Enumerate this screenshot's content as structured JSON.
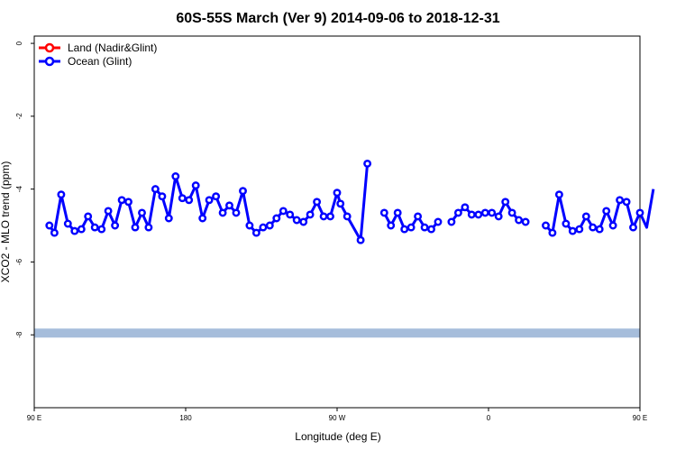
{
  "chart_data": {
    "type": "line",
    "title": "60S-55S March (Ver 9)   2014-09-06 to 2018-12-31",
    "xlabel": "Longitude (deg E)",
    "ylabel": "XCO2 - MLO trend (ppm)",
    "xlim": [
      90,
      450
    ],
    "ylim": [
      -10,
      0.2
    ],
    "x_ticks": [
      {
        "value": 90,
        "label": "90 E"
      },
      {
        "value": 180,
        "label": "180"
      },
      {
        "value": 270,
        "label": "90 W"
      },
      {
        "value": 360,
        "label": "0"
      },
      {
        "value": 450,
        "label": "90 E"
      },
      {
        "value": 540,
        "label": "180"
      }
    ],
    "y_ticks": [
      0,
      -2,
      -4,
      -6,
      -8
    ],
    "legend": [
      {
        "name": "Land (Nadir&Glint)",
        "color": "#ff0000"
      },
      {
        "name": "Ocean (Glint)",
        "color": "#0000ff"
      }
    ],
    "legend_position": "top-left",
    "band": {
      "y": -7.95,
      "color": "#a6bddb"
    },
    "series": [
      {
        "name": "Ocean (Glint)",
        "color": "#0000ff",
        "segments": [
          [
            [
              99,
              -5.0
            ],
            [
              102,
              -5.2
            ],
            [
              106,
              -4.15
            ],
            [
              110,
              -4.95
            ],
            [
              114,
              -5.15
            ],
            [
              118,
              -5.1
            ],
            [
              122,
              -4.75
            ],
            [
              126,
              -5.05
            ],
            [
              130,
              -5.1
            ],
            [
              134,
              -4.6
            ],
            [
              138,
              -5.0
            ],
            [
              142,
              -4.3
            ],
            [
              146,
              -4.35
            ],
            [
              150,
              -5.05
            ],
            [
              154,
              -4.65
            ],
            [
              158,
              -5.05
            ],
            [
              162,
              -4.0
            ],
            [
              166,
              -4.2
            ],
            [
              170,
              -4.8
            ],
            [
              174,
              -3.65
            ],
            [
              178,
              -4.25
            ],
            [
              182,
              -4.3
            ],
            [
              186,
              -3.9
            ],
            [
              190,
              -4.8
            ],
            [
              194,
              -4.3
            ],
            [
              198,
              -4.2
            ],
            [
              202,
              -4.65
            ],
            [
              206,
              -4.45
            ],
            [
              210,
              -4.65
            ],
            [
              214,
              -4.05
            ],
            [
              218,
              -5.0
            ],
            [
              222,
              -5.2
            ],
            [
              226,
              -5.05
            ],
            [
              230,
              -5.0
            ],
            [
              234,
              -4.8
            ],
            [
              238,
              -4.6
            ],
            [
              242,
              -4.7
            ],
            [
              246,
              -4.85
            ],
            [
              250,
              -4.9
            ],
            [
              254,
              -4.7
            ],
            [
              258,
              -4.35
            ],
            [
              262,
              -4.75
            ],
            [
              266,
              -4.75
            ],
            [
              270,
              -4.1
            ],
            [
              272,
              -4.4
            ],
            [
              276,
              -4.75
            ],
            [
              284,
              -5.4
            ],
            [
              288,
              -3.3
            ]
          ],
          [
            [
              298,
              -4.65
            ],
            [
              302,
              -5.0
            ],
            [
              306,
              -4.65
            ],
            [
              310,
              -5.1
            ],
            [
              314,
              -5.05
            ],
            [
              318,
              -4.75
            ],
            [
              322,
              -5.05
            ],
            [
              326,
              -5.1
            ],
            [
              330,
              -4.9
            ]
          ],
          [
            [
              338,
              -4.9
            ],
            [
              342,
              -4.65
            ],
            [
              346,
              -4.5
            ],
            [
              350,
              -4.7
            ],
            [
              354,
              -4.7
            ],
            [
              358,
              -4.65
            ],
            [
              362,
              -4.65
            ],
            [
              366,
              -4.75
            ],
            [
              370,
              -4.35
            ],
            [
              374,
              -4.65
            ],
            [
              378,
              -4.85
            ],
            [
              382,
              -4.9
            ]
          ],
          [
            [
              394,
              -5.0
            ],
            [
              398,
              -5.2
            ],
            [
              402,
              -4.15
            ],
            [
              406,
              -4.95
            ],
            [
              410,
              -5.15
            ],
            [
              414,
              -5.1
            ],
            [
              418,
              -4.75
            ],
            [
              422,
              -5.05
            ],
            [
              426,
              -5.1
            ],
            [
              430,
              -4.6
            ],
            [
              434,
              -5.0
            ],
            [
              438,
              -4.3
            ],
            [
              442,
              -4.35
            ],
            [
              446,
              -5.05
            ],
            [
              450,
              -4.65
            ],
            [
              454,
              -5.05
            ],
            [
              458,
              -4.0
            ]
          ]
        ]
      }
    ]
  }
}
